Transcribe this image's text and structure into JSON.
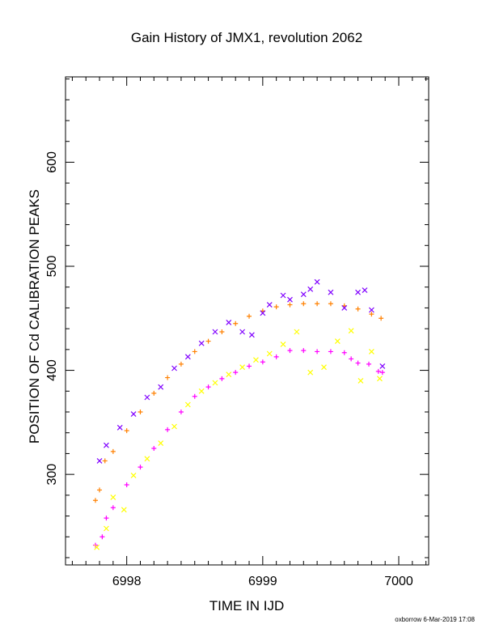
{
  "chart_data": {
    "type": "scatter",
    "title": "Gain History of JMX1, revolution 2062",
    "xlabel": "TIME IN IJD",
    "ylabel": "POSITION OF Cd CALIBRATION PEAKS",
    "xlim": [
      6997.55,
      7000.22
    ],
    "ylim": [
      213,
      682
    ],
    "x_ticks": [
      6998,
      6999,
      7000
    ],
    "x_tick_labels": [
      "6998",
      "6999",
      "7000"
    ],
    "y_ticks": [
      300,
      400,
      500,
      600
    ],
    "y_tick_labels": [
      "300",
      "400",
      "500",
      "600"
    ],
    "x_minor_step": 0.1,
    "y_minor_step": 20,
    "grid": false,
    "legend": "none",
    "series": [
      {
        "color": "#ff8000",
        "marker": "plus",
        "x": [
          6997.77,
          6997.8,
          6997.84,
          6997.9,
          6998.0,
          6998.1,
          6998.2,
          6998.3,
          6998.4,
          6998.5,
          6998.6,
          6998.7,
          6998.8,
          6998.9,
          6999.0,
          6999.1,
          6999.2,
          6999.3,
          6999.4,
          6999.5,
          6999.6,
          6999.7,
          6999.8,
          6999.87
        ],
        "y": [
          275,
          285,
          313,
          322,
          342,
          360,
          378,
          393,
          406,
          418,
          428,
          437,
          445,
          452,
          457,
          461,
          463,
          464,
          464,
          464,
          462,
          459,
          454,
          450
        ]
      },
      {
        "color": "#ff00ff",
        "marker": "plus",
        "x": [
          6997.77,
          6997.82,
          6997.85,
          6997.9,
          6998.0,
          6998.1,
          6998.2,
          6998.3,
          6998.4,
          6998.5,
          6998.6,
          6998.7,
          6998.8,
          6998.9,
          6999.0,
          6999.1,
          6999.2,
          6999.3,
          6999.4,
          6999.5,
          6999.6,
          6999.65,
          6999.7,
          6999.78,
          6999.85,
          6999.88
        ],
        "y": [
          232,
          240,
          258,
          268,
          290,
          307,
          325,
          343,
          360,
          375,
          384,
          392,
          398,
          404,
          408,
          413,
          419,
          419,
          418,
          418,
          417,
          411,
          407,
          406,
          399,
          398
        ]
      },
      {
        "color": "#8000ff",
        "marker": "cross",
        "x": [
          6997.8,
          6997.85,
          6997.95,
          6998.05,
          6998.15,
          6998.25,
          6998.35,
          6998.45,
          6998.55,
          6998.65,
          6998.75,
          6998.85,
          6998.92,
          6999.0,
          6999.05,
          6999.15,
          6999.2,
          6999.3,
          6999.35,
          6999.4,
          6999.5,
          6999.6,
          6999.7,
          6999.75,
          6999.8,
          6999.88
        ],
        "y": [
          313,
          328,
          345,
          358,
          374,
          384,
          402,
          413,
          426,
          437,
          446,
          437,
          434,
          455,
          463,
          472,
          468,
          473,
          478,
          485,
          475,
          460,
          475,
          477,
          458,
          404
        ]
      },
      {
        "color": "#ffff00",
        "marker": "cross",
        "x": [
          6997.78,
          6997.85,
          6997.9,
          6997.98,
          6998.05,
          6998.15,
          6998.25,
          6998.35,
          6998.45,
          6998.55,
          6998.65,
          6998.75,
          6998.85,
          6998.95,
          6999.05,
          6999.15,
          6999.25,
          6999.35,
          6999.45,
          6999.55,
          6999.65,
          6999.72,
          6999.8,
          6999.86
        ],
        "y": [
          230,
          248,
          278,
          266,
          299,
          315,
          330,
          346,
          367,
          380,
          388,
          396,
          403,
          410,
          416,
          425,
          437,
          398,
          403,
          428,
          438,
          390,
          418,
          392
        ]
      }
    ]
  },
  "footer": {
    "credit": "oxborrow  6-Mar-2019 17:08"
  }
}
